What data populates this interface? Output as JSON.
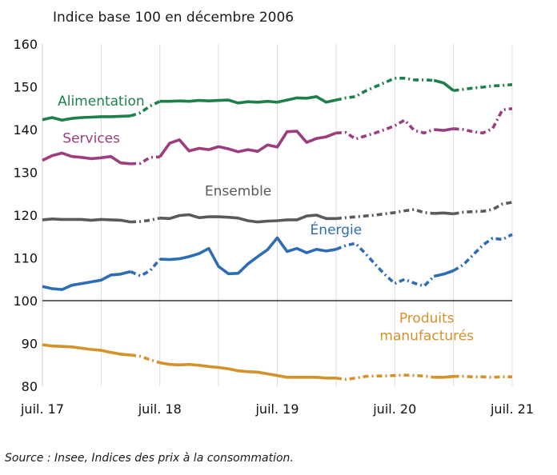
{
  "header": {
    "title": "Indice base 100 en décembre 2006"
  },
  "footer": {
    "source": "Source : Insee, Indices des prix à la consommation."
  },
  "chart_data": {
    "type": "line",
    "title": "Indice base 100 en décembre 2006",
    "xlabel": "",
    "ylabel": "",
    "ylim": [
      80,
      160
    ],
    "yticks": [
      80,
      90,
      100,
      110,
      120,
      130,
      140,
      150,
      160
    ],
    "reference_line": 100,
    "x_range": [
      "2017-07",
      "2021-07"
    ],
    "xticks": [
      {
        "date": "2017-07",
        "label": "juil. 17"
      },
      {
        "date": "2018-07",
        "label": "juil. 18"
      },
      {
        "date": "2019-07",
        "label": "juil. 19"
      },
      {
        "date": "2020-07",
        "label": "juil. 20"
      },
      {
        "date": "2021-07",
        "label": "juil. 21"
      }
    ],
    "grid": "vertical",
    "legend": "inline labels",
    "line_style_note": "solid segments alternate with dash-dot segments",
    "series": [
      {
        "name": "Alimentation",
        "color": "#1e7f4a",
        "label_anchor": "2018-01",
        "values": [
          [
            "2017-07",
            142.3
          ],
          [
            "2017-08",
            142.8
          ],
          [
            "2017-09",
            142.2
          ],
          [
            "2017-10",
            142.6
          ],
          [
            "2017-11",
            142.8
          ],
          [
            "2017-12",
            142.9
          ],
          [
            "2018-01",
            143.0
          ],
          [
            "2018-02",
            143.0
          ],
          [
            "2018-03",
            143.1
          ],
          [
            "2018-04",
            143.2
          ],
          [
            "2018-05",
            143.9
          ],
          [
            "2018-06",
            145.5
          ],
          [
            "2018-07",
            146.6
          ],
          [
            "2018-08",
            146.6
          ],
          [
            "2018-09",
            146.7
          ],
          [
            "2018-10",
            146.6
          ],
          [
            "2018-11",
            146.8
          ],
          [
            "2018-12",
            146.7
          ],
          [
            "2019-01",
            146.8
          ],
          [
            "2019-02",
            146.9
          ],
          [
            "2019-03",
            146.2
          ],
          [
            "2019-04",
            146.5
          ],
          [
            "2019-05",
            146.4
          ],
          [
            "2019-06",
            146.6
          ],
          [
            "2019-07",
            146.4
          ],
          [
            "2019-08",
            146.9
          ],
          [
            "2019-09",
            147.4
          ],
          [
            "2019-10",
            147.3
          ],
          [
            "2019-11",
            147.7
          ],
          [
            "2019-12",
            146.4
          ],
          [
            "2020-01",
            146.9
          ],
          [
            "2020-02",
            147.4
          ],
          [
            "2020-03",
            147.7
          ],
          [
            "2020-04",
            149.0
          ],
          [
            "2020-05",
            150.0
          ],
          [
            "2020-06",
            151.0
          ],
          [
            "2020-07",
            152.0
          ],
          [
            "2020-08",
            152.0
          ],
          [
            "2020-09",
            151.6
          ],
          [
            "2020-10",
            151.6
          ],
          [
            "2020-11",
            151.5
          ],
          [
            "2020-12",
            150.9
          ],
          [
            "2021-01",
            149.1
          ],
          [
            "2021-02",
            149.4
          ],
          [
            "2021-03",
            149.7
          ],
          [
            "2021-04",
            149.9
          ],
          [
            "2021-05",
            150.2
          ],
          [
            "2021-06",
            150.3
          ],
          [
            "2021-07",
            150.5
          ]
        ]
      },
      {
        "name": "Services",
        "color": "#9b3d7f",
        "label_anchor": "2017-12",
        "values": [
          [
            "2017-07",
            132.8
          ],
          [
            "2017-08",
            133.9
          ],
          [
            "2017-09",
            134.5
          ],
          [
            "2017-10",
            133.7
          ],
          [
            "2017-11",
            133.5
          ],
          [
            "2017-12",
            133.2
          ],
          [
            "2018-01",
            133.4
          ],
          [
            "2018-02",
            133.7
          ],
          [
            "2018-03",
            132.2
          ],
          [
            "2018-04",
            132.0
          ],
          [
            "2018-05",
            132.1
          ],
          [
            "2018-06",
            133.5
          ],
          [
            "2018-07",
            133.6
          ],
          [
            "2018-08",
            136.8
          ],
          [
            "2018-09",
            137.6
          ],
          [
            "2018-10",
            135.0
          ],
          [
            "2018-11",
            135.6
          ],
          [
            "2018-12",
            135.3
          ],
          [
            "2019-01",
            136.0
          ],
          [
            "2019-02",
            135.5
          ],
          [
            "2019-03",
            134.8
          ],
          [
            "2019-04",
            135.3
          ],
          [
            "2019-05",
            134.9
          ],
          [
            "2019-06",
            136.4
          ],
          [
            "2019-07",
            135.9
          ],
          [
            "2019-08",
            139.5
          ],
          [
            "2019-09",
            139.6
          ],
          [
            "2019-10",
            137.0
          ],
          [
            "2019-11",
            137.9
          ],
          [
            "2019-12",
            138.3
          ],
          [
            "2020-01",
            139.2
          ],
          [
            "2020-02",
            139.3
          ],
          [
            "2020-03",
            137.8
          ],
          [
            "2020-04",
            138.5
          ],
          [
            "2020-05",
            139.2
          ],
          [
            "2020-06",
            140.0
          ],
          [
            "2020-07",
            140.9
          ],
          [
            "2020-08",
            142.2
          ],
          [
            "2020-09",
            139.8
          ],
          [
            "2020-10",
            139.2
          ],
          [
            "2020-11",
            140.0
          ],
          [
            "2020-12",
            139.8
          ],
          [
            "2021-01",
            140.2
          ],
          [
            "2021-02",
            140.0
          ],
          [
            "2021-03",
            139.5
          ],
          [
            "2021-04",
            139.2
          ],
          [
            "2021-05",
            140.2
          ],
          [
            "2021-06",
            144.6
          ],
          [
            "2021-07",
            144.9
          ]
        ]
      },
      {
        "name": "Ensemble",
        "color": "#5a5a5a",
        "label_anchor": "2019-03",
        "values": [
          [
            "2017-07",
            118.9
          ],
          [
            "2017-08",
            119.1
          ],
          [
            "2017-09",
            119.0
          ],
          [
            "2017-10",
            119.0
          ],
          [
            "2017-11",
            119.0
          ],
          [
            "2017-12",
            118.8
          ],
          [
            "2018-01",
            119.0
          ],
          [
            "2018-02",
            118.9
          ],
          [
            "2018-03",
            118.8
          ],
          [
            "2018-04",
            118.4
          ],
          [
            "2018-05",
            118.5
          ],
          [
            "2018-06",
            118.8
          ],
          [
            "2018-07",
            119.3
          ],
          [
            "2018-08",
            119.2
          ],
          [
            "2018-09",
            119.9
          ],
          [
            "2018-10",
            120.1
          ],
          [
            "2018-11",
            119.4
          ],
          [
            "2018-12",
            119.6
          ],
          [
            "2019-01",
            119.6
          ],
          [
            "2019-02",
            119.5
          ],
          [
            "2019-03",
            119.3
          ],
          [
            "2019-04",
            118.7
          ],
          [
            "2019-05",
            118.4
          ],
          [
            "2019-06",
            118.6
          ],
          [
            "2019-07",
            118.7
          ],
          [
            "2019-08",
            118.9
          ],
          [
            "2019-09",
            118.9
          ],
          [
            "2019-10",
            119.8
          ],
          [
            "2019-11",
            120.0
          ],
          [
            "2019-12",
            119.2
          ],
          [
            "2020-01",
            119.2
          ],
          [
            "2020-02",
            119.4
          ],
          [
            "2020-03",
            119.6
          ],
          [
            "2020-04",
            119.8
          ],
          [
            "2020-05",
            120.0
          ],
          [
            "2020-06",
            120.3
          ],
          [
            "2020-07",
            120.6
          ],
          [
            "2020-08",
            121.0
          ],
          [
            "2020-09",
            121.3
          ],
          [
            "2020-10",
            120.6
          ],
          [
            "2020-11",
            120.4
          ],
          [
            "2020-12",
            120.5
          ],
          [
            "2021-01",
            120.3
          ],
          [
            "2021-02",
            120.7
          ],
          [
            "2021-03",
            120.8
          ],
          [
            "2021-04",
            120.9
          ],
          [
            "2021-05",
            121.3
          ],
          [
            "2021-06",
            122.6
          ],
          [
            "2021-07",
            123.0
          ]
        ]
      },
      {
        "name": "Énergie",
        "color": "#2e6db4",
        "label_anchor": "2020-01",
        "values": [
          [
            "2017-07",
            103.3
          ],
          [
            "2017-08",
            102.8
          ],
          [
            "2017-09",
            102.6
          ],
          [
            "2017-10",
            103.6
          ],
          [
            "2017-11",
            104.0
          ],
          [
            "2017-12",
            104.4
          ],
          [
            "2018-01",
            104.8
          ],
          [
            "2018-02",
            106.0
          ],
          [
            "2018-03",
            106.2
          ],
          [
            "2018-04",
            106.8
          ],
          [
            "2018-05",
            105.8
          ],
          [
            "2018-06",
            107.0
          ],
          [
            "2018-07",
            109.7
          ],
          [
            "2018-08",
            109.6
          ],
          [
            "2018-09",
            109.8
          ],
          [
            "2018-10",
            110.3
          ],
          [
            "2018-11",
            111.0
          ],
          [
            "2018-12",
            112.2
          ],
          [
            "2019-01",
            108.0
          ],
          [
            "2019-02",
            106.3
          ],
          [
            "2019-03",
            106.4
          ],
          [
            "2019-04",
            108.6
          ],
          [
            "2019-05",
            110.3
          ],
          [
            "2019-06",
            111.9
          ],
          [
            "2019-07",
            114.7
          ],
          [
            "2019-08",
            111.5
          ],
          [
            "2019-09",
            112.2
          ],
          [
            "2019-10",
            111.2
          ],
          [
            "2019-11",
            112.0
          ],
          [
            "2019-12",
            111.6
          ],
          [
            "2020-01",
            112.0
          ],
          [
            "2020-02",
            112.9
          ],
          [
            "2020-03",
            113.4
          ],
          [
            "2020-04",
            111.0
          ],
          [
            "2020-05",
            108.5
          ],
          [
            "2020-06",
            106.1
          ],
          [
            "2020-07",
            104.0
          ],
          [
            "2020-08",
            105.0
          ],
          [
            "2020-09",
            104.1
          ],
          [
            "2020-10",
            103.4
          ],
          [
            "2020-11",
            105.7
          ],
          [
            "2020-12",
            106.2
          ],
          [
            "2021-01",
            107.0
          ],
          [
            "2021-02",
            108.4
          ],
          [
            "2021-03",
            110.7
          ],
          [
            "2021-04",
            113.0
          ],
          [
            "2021-05",
            114.6
          ],
          [
            "2021-06",
            114.3
          ],
          [
            "2021-07",
            115.5
          ]
        ]
      },
      {
        "name": "Produits manufacturés",
        "name_lines": [
          "Produits",
          "manufacturés"
        ],
        "color": "#d4922b",
        "label_anchor": "2020-07",
        "values": [
          [
            "2017-07",
            89.7
          ],
          [
            "2017-08",
            89.4
          ],
          [
            "2017-09",
            89.3
          ],
          [
            "2017-10",
            89.2
          ],
          [
            "2017-11",
            88.9
          ],
          [
            "2017-12",
            88.6
          ],
          [
            "2018-01",
            88.4
          ],
          [
            "2018-02",
            87.9
          ],
          [
            "2018-03",
            87.5
          ],
          [
            "2018-04",
            87.3
          ],
          [
            "2018-05",
            87.0
          ],
          [
            "2018-06",
            86.2
          ],
          [
            "2018-07",
            85.5
          ],
          [
            "2018-08",
            85.1
          ],
          [
            "2018-09",
            85.0
          ],
          [
            "2018-10",
            85.1
          ],
          [
            "2018-11",
            84.9
          ],
          [
            "2018-12",
            84.6
          ],
          [
            "2019-01",
            84.4
          ],
          [
            "2019-02",
            84.1
          ],
          [
            "2019-03",
            83.6
          ],
          [
            "2019-04",
            83.4
          ],
          [
            "2019-05",
            83.3
          ],
          [
            "2019-06",
            82.9
          ],
          [
            "2019-07",
            82.5
          ],
          [
            "2019-08",
            82.1
          ],
          [
            "2019-09",
            82.1
          ],
          [
            "2019-10",
            82.1
          ],
          [
            "2019-11",
            82.1
          ],
          [
            "2019-12",
            81.9
          ],
          [
            "2020-01",
            81.9
          ],
          [
            "2020-02",
            81.6
          ],
          [
            "2020-03",
            81.9
          ],
          [
            "2020-04",
            82.3
          ],
          [
            "2020-05",
            82.4
          ],
          [
            "2020-06",
            82.4
          ],
          [
            "2020-07",
            82.5
          ],
          [
            "2020-08",
            82.6
          ],
          [
            "2020-09",
            82.5
          ],
          [
            "2020-10",
            82.4
          ],
          [
            "2020-11",
            82.1
          ],
          [
            "2020-12",
            82.1
          ],
          [
            "2021-01",
            82.3
          ],
          [
            "2021-02",
            82.3
          ],
          [
            "2021-03",
            82.2
          ],
          [
            "2021-04",
            82.2
          ],
          [
            "2021-05",
            82.1
          ],
          [
            "2021-06",
            82.2
          ],
          [
            "2021-07",
            82.2
          ]
        ]
      }
    ]
  }
}
